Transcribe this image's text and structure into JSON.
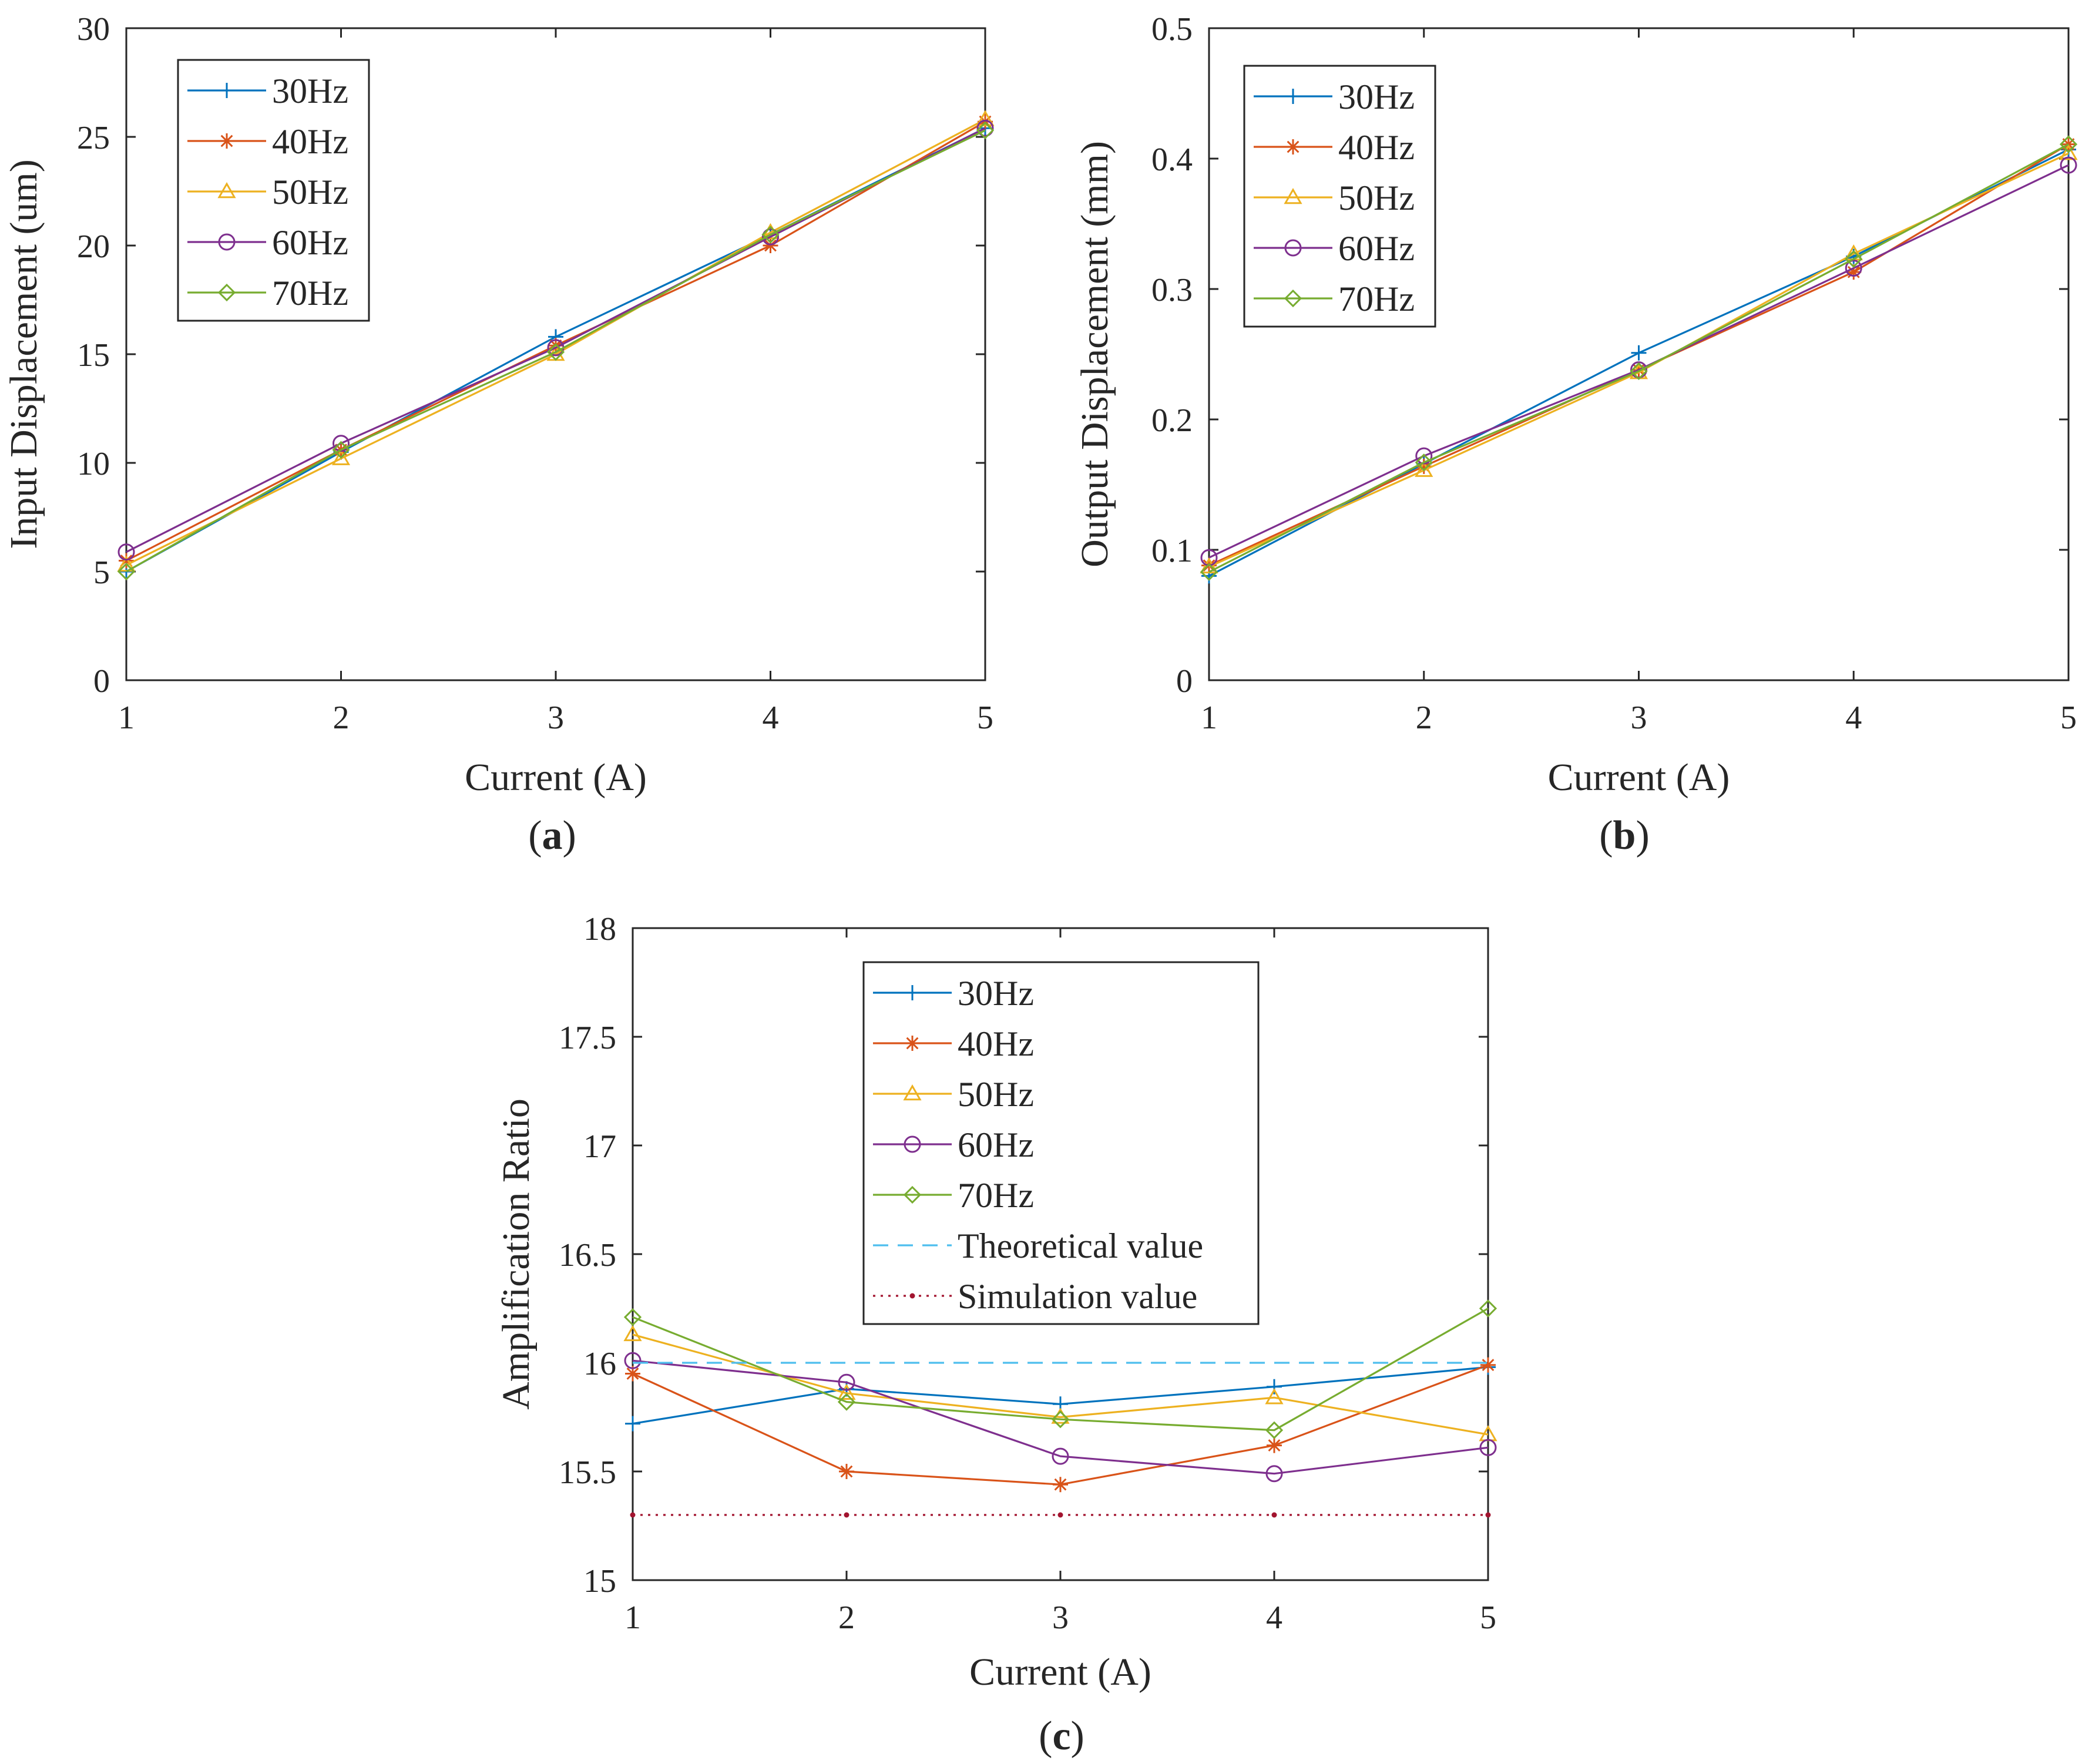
{
  "figure": {
    "panels": [
      {
        "tag_open": "(",
        "tag_letter": "a",
        "tag_close": ")"
      },
      {
        "tag_open": "(",
        "tag_letter": "b",
        "tag_close": ")"
      },
      {
        "tag_open": "(",
        "tag_letter": "c",
        "tag_close": ")"
      }
    ]
  },
  "series_styles": [
    {
      "name": "30Hz",
      "color": "#0072BD",
      "marker": "plus"
    },
    {
      "name": "40Hz",
      "color": "#D95319",
      "marker": "asterisk"
    },
    {
      "name": "50Hz",
      "color": "#EDB120",
      "marker": "triangle"
    },
    {
      "name": "60Hz",
      "color": "#7E2F8E",
      "marker": "circle"
    },
    {
      "name": "70Hz",
      "color": "#77AC30",
      "marker": "diamond"
    },
    {
      "name": "Theoretical value",
      "color": "#4DBEEE",
      "marker": "none",
      "line": "dashed"
    },
    {
      "name": "Simulation value",
      "color": "#A2142F",
      "marker": "dot",
      "line": "dotted"
    }
  ],
  "chart_data": [
    {
      "type": "line",
      "xlabel": "Current (A)",
      "ylabel": "Input Displacement (um)",
      "x": [
        1,
        2,
        3,
        4,
        5
      ],
      "xlim": [
        1,
        5
      ],
      "ylim": [
        0,
        30
      ],
      "xticks": [
        "1",
        "2",
        "3",
        "4",
        "5"
      ],
      "yticks": [
        "0",
        "5",
        "10",
        "15",
        "20",
        "25",
        "30"
      ],
      "grid": true,
      "legend": "top-left",
      "series": [
        {
          "name": "30Hz",
          "values": [
            5.0,
            10.5,
            15.8,
            20.5,
            25.4
          ]
        },
        {
          "name": "40Hz",
          "values": [
            5.5,
            10.6,
            15.4,
            20.0,
            25.7
          ]
        },
        {
          "name": "50Hz",
          "values": [
            5.3,
            10.2,
            15.0,
            20.6,
            25.8
          ]
        },
        {
          "name": "60Hz",
          "values": [
            5.9,
            10.9,
            15.3,
            20.4,
            25.4
          ]
        },
        {
          "name": "70Hz",
          "values": [
            5.0,
            10.6,
            15.1,
            20.5,
            25.3
          ]
        }
      ]
    },
    {
      "type": "line",
      "xlabel": "Current (A)",
      "ylabel": "Output Displacement (mm)",
      "x": [
        1,
        2,
        3,
        4,
        5
      ],
      "xlim": [
        1,
        5
      ],
      "ylim": [
        0,
        0.5
      ],
      "xticks": [
        "1",
        "2",
        "3",
        "4",
        "5"
      ],
      "yticks": [
        "0",
        "0.1",
        "0.2",
        "0.3",
        "0.4",
        "0.5"
      ],
      "grid": true,
      "legend": "top-left",
      "series": [
        {
          "name": "30Hz",
          "values": [
            0.08,
            0.166,
            0.251,
            0.325,
            0.407
          ]
        },
        {
          "name": "40Hz",
          "values": [
            0.088,
            0.164,
            0.238,
            0.313,
            0.411
          ]
        },
        {
          "name": "50Hz",
          "values": [
            0.087,
            0.161,
            0.236,
            0.327,
            0.404
          ]
        },
        {
          "name": "60Hz",
          "values": [
            0.094,
            0.172,
            0.238,
            0.316,
            0.395
          ]
        },
        {
          "name": "70Hz",
          "values": [
            0.083,
            0.167,
            0.237,
            0.323,
            0.411
          ]
        }
      ]
    },
    {
      "type": "line",
      "xlabel": "Current (A)",
      "ylabel": "Amplification Ratio",
      "x": [
        1,
        2,
        3,
        4,
        5
      ],
      "xlim": [
        1,
        5
      ],
      "ylim": [
        15,
        18
      ],
      "xticks": [
        "1",
        "2",
        "3",
        "4",
        "5"
      ],
      "yticks": [
        "15",
        "15.5",
        "16",
        "16.5",
        "17",
        "17.5",
        "18"
      ],
      "grid": true,
      "legend": "top-center",
      "series": [
        {
          "name": "30Hz",
          "values": [
            15.72,
            15.88,
            15.81,
            15.89,
            15.98
          ]
        },
        {
          "name": "40Hz",
          "values": [
            15.95,
            15.5,
            15.44,
            15.62,
            15.99
          ]
        },
        {
          "name": "50Hz",
          "values": [
            16.13,
            15.86,
            15.75,
            15.84,
            15.67
          ]
        },
        {
          "name": "60Hz",
          "values": [
            16.01,
            15.91,
            15.57,
            15.49,
            15.61
          ]
        },
        {
          "name": "70Hz",
          "values": [
            16.21,
            15.82,
            15.74,
            15.69,
            16.25
          ]
        },
        {
          "name": "Theoretical value",
          "values": [
            16.0,
            16.0,
            16.0,
            16.0,
            16.0
          ]
        },
        {
          "name": "Simulation value",
          "values": [
            15.3,
            15.3,
            15.3,
            15.3,
            15.3
          ]
        }
      ]
    }
  ]
}
